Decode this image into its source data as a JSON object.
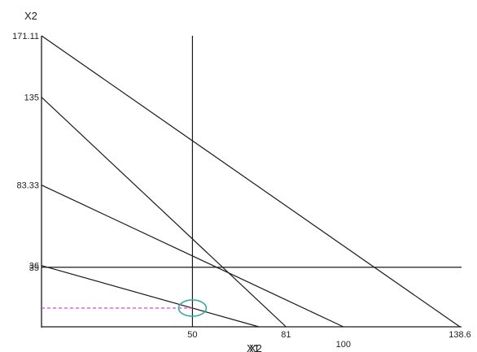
{
  "chart_data": {
    "type": "line",
    "title": "",
    "xlabel": "X1",
    "ylabel": "X2",
    "xlabel_overlay": "X2",
    "xlim": [
      0,
      138.6
    ],
    "ylim": [
      0,
      171.11
    ],
    "x_ticks": [
      "50",
      "81",
      "100",
      "138.6"
    ],
    "y_ticks": [
      "171.11",
      "135",
      "83.33",
      "36",
      "35"
    ],
    "constraints": [
      {
        "x_intercept": 138.6,
        "y_intercept": 171.11
      },
      {
        "x_intercept": 81,
        "y_intercept": 135
      },
      {
        "x_intercept": 100,
        "y_intercept": 83.33
      },
      {
        "x_intercept": 72,
        "y_intercept": 36
      }
    ],
    "horizontal_line_y": 35,
    "vertical_line_x": 50,
    "dashed_line_y": 11,
    "highlight_point": {
      "x": 50,
      "y": 11
    },
    "colors": {
      "lines": "#1a1a1a",
      "dashed": "#e040e0",
      "highlight": "#3aa8a8",
      "background": "#ffffff"
    }
  }
}
